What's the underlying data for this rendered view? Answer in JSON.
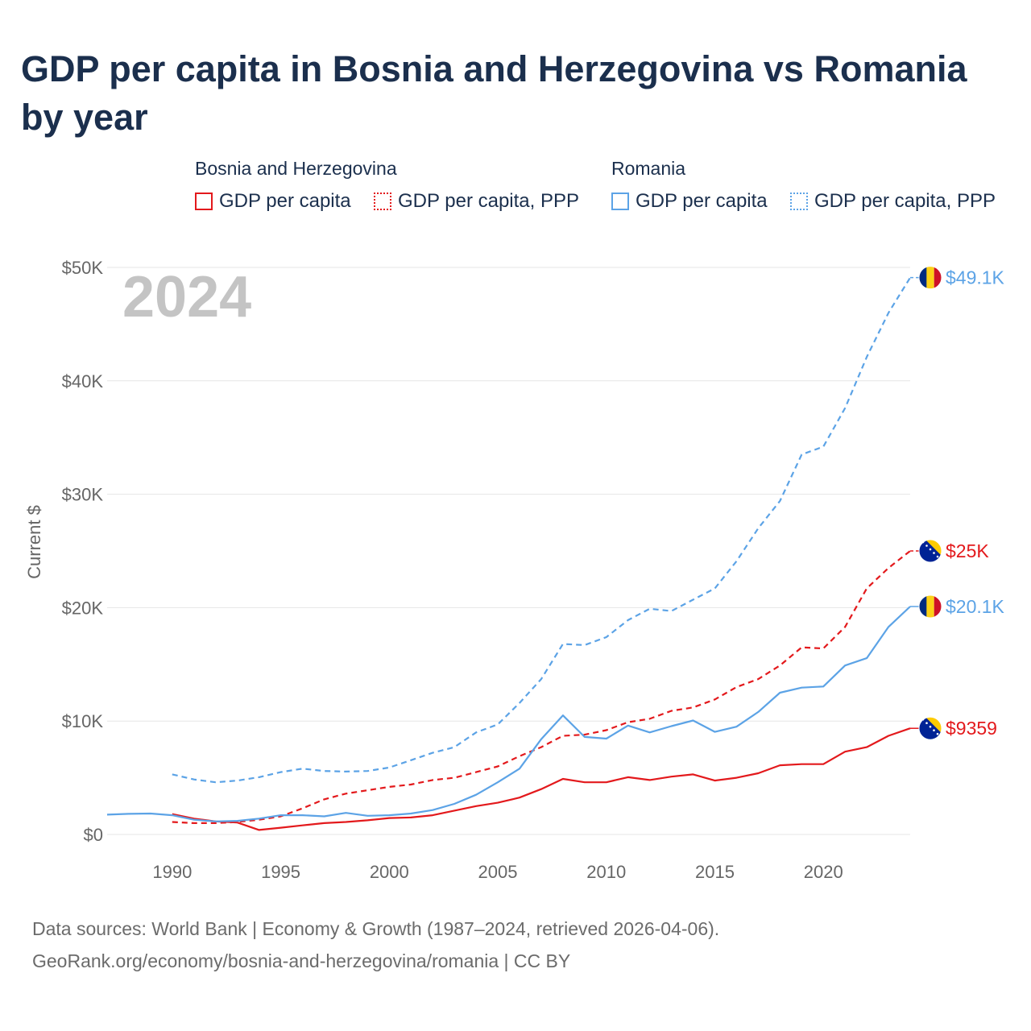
{
  "title": "GDP per capita in Bosnia and Herzegovina vs Romania by year",
  "legend": {
    "groups": [
      {
        "name": "Bosnia and Herzegovina",
        "color": "#e3191c",
        "items": [
          "GDP per capita",
          "GDP per capita, PPP"
        ]
      },
      {
        "name": "Romania",
        "color": "#5ca3e6",
        "items": [
          "GDP per capita",
          "GDP per capita, PPP"
        ]
      }
    ]
  },
  "year_watermark": "2024",
  "footer": {
    "line1": "Data sources: World Bank | Economy & Growth (1987–2024, retrieved 2026-04-06).",
    "line2": "GeoRank.org/economy/bosnia-and-herzegovina/romania | CC BY"
  },
  "chart_data": {
    "type": "line",
    "title": "GDP per capita in Bosnia and Herzegovina vs Romania by year",
    "xlabel": "",
    "ylabel": "Current $",
    "xlim": [
      1987,
      2024
    ],
    "ylim": [
      0,
      50000
    ],
    "x_ticks": [
      1990,
      1995,
      2000,
      2005,
      2010,
      2015,
      2020
    ],
    "y_ticks": [
      {
        "value": 0,
        "label": "$0"
      },
      {
        "value": 10000,
        "label": "$10K"
      },
      {
        "value": 20000,
        "label": "$20K"
      },
      {
        "value": 30000,
        "label": "$30K"
      },
      {
        "value": 40000,
        "label": "$40K"
      },
      {
        "value": 50000,
        "label": "$50K"
      }
    ],
    "grid": true,
    "series": [
      {
        "name": "Bosnia and Herzegovina GDP per capita",
        "color": "#e3191c",
        "dash": "solid",
        "end_label": "$9359",
        "flag": "bosnia-flag-icon",
        "x": [
          1990,
          1991,
          1992,
          1993,
          1994,
          1995,
          1996,
          1997,
          1998,
          1999,
          2000,
          2001,
          2002,
          2003,
          2004,
          2005,
          2006,
          2007,
          2008,
          2009,
          2010,
          2011,
          2012,
          2013,
          2014,
          2015,
          2016,
          2017,
          2018,
          2019,
          2020,
          2021,
          2022,
          2023,
          2024
        ],
        "values": [
          1800,
          1400,
          1150,
          1050,
          400,
          600,
          800,
          1000,
          1100,
          1250,
          1450,
          1500,
          1700,
          2100,
          2500,
          2800,
          3250,
          4000,
          4900,
          4600,
          4600,
          5050,
          4800,
          5100,
          5300,
          4750,
          5000,
          5400,
          6100,
          6200,
          6200,
          7300,
          7700,
          8700,
          9359
        ]
      },
      {
        "name": "Bosnia and Herzegovina GDP per capita, PPP",
        "color": "#e3191c",
        "dash": "dashed",
        "end_label": "$25K",
        "flag": "bosnia-flag-icon",
        "x": [
          1990,
          1991,
          1992,
          1993,
          1994,
          1995,
          1996,
          1997,
          1998,
          1999,
          2000,
          2001,
          2002,
          2003,
          2004,
          2005,
          2006,
          2007,
          2008,
          2009,
          2010,
          2011,
          2012,
          2013,
          2014,
          2015,
          2016,
          2017,
          2018,
          2019,
          2020,
          2021,
          2022,
          2023,
          2024
        ],
        "values": [
          1100,
          1000,
          1000,
          1100,
          1300,
          1600,
          2300,
          3100,
          3600,
          3900,
          4200,
          4400,
          4800,
          5000,
          5500,
          6000,
          6900,
          7700,
          8700,
          8800,
          9200,
          9900,
          10200,
          10900,
          11200,
          11900,
          13000,
          13700,
          14900,
          16500,
          16400,
          18300,
          21700,
          23500,
          25000
        ]
      },
      {
        "name": "Romania GDP per capita",
        "color": "#5ca3e6",
        "dash": "solid",
        "end_label": "$20.1K",
        "flag": "romania-flag-icon",
        "x": [
          1987,
          1988,
          1989,
          1990,
          1991,
          1992,
          1993,
          1994,
          1995,
          1996,
          1997,
          1998,
          1999,
          2000,
          2001,
          2002,
          2003,
          2004,
          2005,
          2006,
          2007,
          2008,
          2009,
          2010,
          2011,
          2012,
          2013,
          2014,
          2015,
          2016,
          2017,
          2018,
          2019,
          2020,
          2021,
          2022,
          2023,
          2024
        ],
        "values": [
          1750,
          1820,
          1850,
          1700,
          1300,
          1150,
          1200,
          1400,
          1700,
          1700,
          1600,
          1900,
          1650,
          1700,
          1850,
          2150,
          2700,
          3500,
          4600,
          5800,
          8400,
          10500,
          8600,
          8450,
          9600,
          9000,
          9550,
          10050,
          9050,
          9500,
          10800,
          12500,
          12950,
          13050,
          14900,
          15550,
          18300,
          20100
        ]
      },
      {
        "name": "Romania GDP per capita, PPP",
        "color": "#5ca3e6",
        "dash": "dashed",
        "end_label": "$49.1K",
        "flag": "romania-flag-icon",
        "x": [
          1990,
          1991,
          1992,
          1993,
          1994,
          1995,
          1996,
          1997,
          1998,
          1999,
          2000,
          2001,
          2002,
          2003,
          2004,
          2005,
          2006,
          2007,
          2008,
          2009,
          2010,
          2011,
          2012,
          2013,
          2014,
          2015,
          2016,
          2017,
          2018,
          2019,
          2020,
          2021,
          2022,
          2023,
          2024
        ],
        "values": [
          5300,
          4850,
          4600,
          4750,
          5050,
          5500,
          5800,
          5600,
          5550,
          5600,
          5900,
          6550,
          7200,
          7700,
          9000,
          9700,
          11600,
          13700,
          16800,
          16700,
          17400,
          18900,
          19900,
          19700,
          20700,
          21700,
          24100,
          27000,
          29400,
          33500,
          34200,
          37600,
          42100,
          46000,
          49100
        ]
      }
    ]
  }
}
